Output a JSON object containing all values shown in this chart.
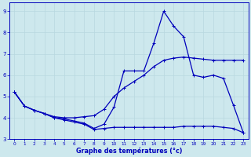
{
  "xlabel": "Graphe des températures (°c)",
  "xlim": [
    -0.5,
    23.5
  ],
  "ylim": [
    3.0,
    9.4
  ],
  "yticks": [
    3,
    4,
    5,
    6,
    7,
    8,
    9
  ],
  "xticks": [
    0,
    1,
    2,
    3,
    4,
    5,
    6,
    7,
    8,
    9,
    10,
    11,
    12,
    13,
    14,
    15,
    16,
    17,
    18,
    19,
    20,
    21,
    22,
    23
  ],
  "bg_color": "#cde8ed",
  "line_color": "#0000bb",
  "grid_color": "#b8d8e0",
  "line1_x": [
    0,
    1,
    2,
    3,
    4,
    5,
    6,
    7,
    8,
    9,
    10,
    11,
    12,
    13,
    14,
    15,
    16,
    17,
    18,
    19,
    20,
    21,
    22,
    23
  ],
  "line1_y": [
    5.2,
    4.55,
    4.35,
    4.2,
    4.0,
    3.95,
    3.85,
    3.75,
    3.5,
    3.7,
    4.5,
    6.2,
    6.2,
    6.2,
    7.5,
    9.0,
    8.3,
    7.8,
    6.0,
    5.9,
    6.0,
    5.85,
    4.6,
    3.3
  ],
  "line2_x": [
    0,
    1,
    2,
    3,
    4,
    5,
    6,
    7,
    8,
    9,
    10,
    11,
    12,
    13,
    14,
    15,
    16,
    17,
    18,
    19,
    20,
    21,
    22,
    23
  ],
  "line2_y": [
    5.2,
    4.55,
    4.35,
    4.2,
    4.05,
    4.0,
    4.0,
    4.05,
    4.1,
    4.4,
    5.0,
    5.4,
    5.7,
    6.0,
    6.4,
    6.7,
    6.8,
    6.85,
    6.8,
    6.75,
    6.7,
    6.7,
    6.7,
    6.7
  ],
  "line3_x": [
    0,
    1,
    2,
    3,
    4,
    5,
    6,
    7,
    8,
    9,
    10,
    11,
    12,
    13,
    14,
    15,
    16,
    17,
    18,
    19,
    20,
    21,
    22,
    23
  ],
  "line3_y": [
    5.2,
    4.55,
    4.35,
    4.2,
    4.0,
    3.9,
    3.8,
    3.7,
    3.45,
    3.5,
    3.55,
    3.55,
    3.55,
    3.55,
    3.55,
    3.55,
    3.55,
    3.6,
    3.6,
    3.6,
    3.6,
    3.55,
    3.5,
    3.3
  ]
}
